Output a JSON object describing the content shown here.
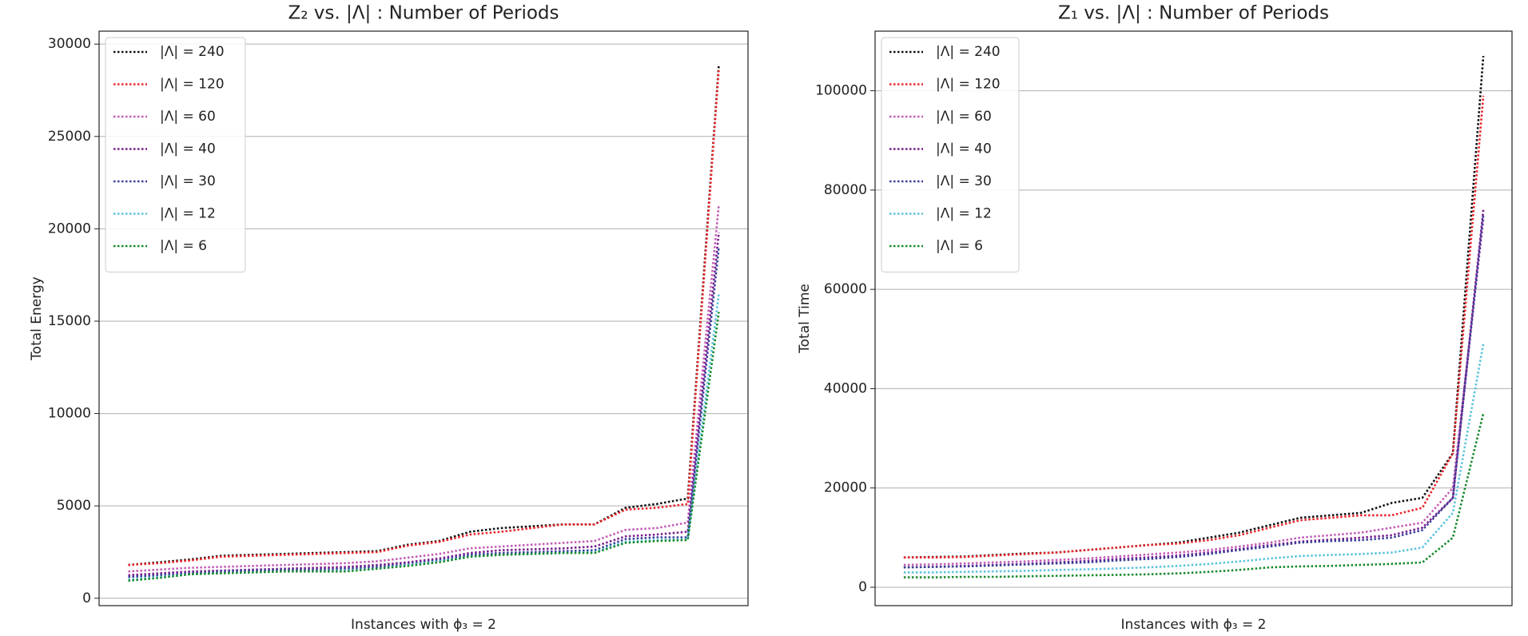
{
  "chart_data": [
    {
      "type": "line",
      "title": "Z₂ vs. |Λ| : Number of Periods",
      "xlabel": "Instances with ϕ₃ = 2",
      "ylabel": "Total Energy",
      "categories": [
        null,
        null,
        null,
        null,
        null,
        null,
        null,
        null,
        null,
        null,
        null,
        null,
        null,
        null,
        null,
        null,
        null,
        null,
        null,
        null
      ],
      "ylim": [
        -400,
        30700
      ],
      "yticks": [
        0,
        5000,
        10000,
        15000,
        20000,
        25000,
        30000
      ],
      "grid": true,
      "legend": "upper left",
      "series": [
        {
          "name": "|Λ| = 240",
          "color": "#111111",
          "values": [
            1800,
            1950,
            2100,
            2300,
            2350,
            2400,
            2450,
            2500,
            2550,
            2900,
            3100,
            3600,
            3800,
            3900,
            4000,
            4000,
            4900,
            5100,
            5400,
            28900
          ]
        },
        {
          "name": "|Λ| = 120",
          "color": "#e8262a",
          "values": [
            1800,
            1900,
            2050,
            2250,
            2300,
            2350,
            2400,
            2450,
            2500,
            2850,
            3050,
            3450,
            3600,
            3800,
            4000,
            4000,
            4800,
            4900,
            5100,
            28700
          ]
        },
        {
          "name": "|Λ| = 60",
          "color": "#c35cb6",
          "values": [
            1450,
            1550,
            1650,
            1700,
            1750,
            1800,
            1850,
            1900,
            2000,
            2200,
            2400,
            2700,
            2800,
            2900,
            3000,
            3100,
            3700,
            3800,
            4100,
            21300
          ]
        },
        {
          "name": "|Λ| = 40",
          "color": "#7a1f8e",
          "values": [
            1250,
            1350,
            1450,
            1500,
            1550,
            1600,
            1650,
            1700,
            1800,
            1950,
            2150,
            2450,
            2600,
            2650,
            2700,
            2800,
            3350,
            3450,
            3600,
            19800
          ]
        },
        {
          "name": "|Λ| = 30",
          "color": "#3a3f98",
          "values": [
            1150,
            1250,
            1350,
            1450,
            1500,
            1550,
            1550,
            1600,
            1700,
            1850,
            2050,
            2350,
            2450,
            2500,
            2550,
            2600,
            3200,
            3300,
            3300,
            19000
          ]
        },
        {
          "name": "|Λ| = 12",
          "color": "#5cc3df",
          "values": [
            1000,
            1150,
            1300,
            1350,
            1400,
            1450,
            1450,
            1500,
            1600,
            1800,
            2000,
            2250,
            2350,
            2400,
            2450,
            2500,
            3050,
            3150,
            3200,
            16500
          ]
        },
        {
          "name": "|Λ| = 6",
          "color": "#178a2c",
          "values": [
            950,
            1100,
            1300,
            1350,
            1400,
            1450,
            1450,
            1450,
            1600,
            1750,
            1950,
            2250,
            2350,
            2400,
            2450,
            2450,
            3000,
            3100,
            3150,
            15500
          ]
        }
      ]
    },
    {
      "type": "line",
      "title": "Z₁ vs. |Λ| : Number of Periods",
      "xlabel": "Instances with ϕ₃ = 2",
      "ylabel": "Total Time",
      "categories": [
        null,
        null,
        null,
        null,
        null,
        null,
        null,
        null,
        null,
        null,
        null,
        null,
        null,
        null,
        null,
        null,
        null,
        null,
        null,
        null
      ],
      "ylim": [
        -3700,
        112000
      ],
      "yticks": [
        0,
        20000,
        40000,
        60000,
        80000,
        100000
      ],
      "grid": true,
      "legend": "upper left",
      "series": [
        {
          "name": "|Λ| = 240",
          "color": "#111111",
          "values": [
            6000,
            6100,
            6200,
            6500,
            6800,
            7000,
            7500,
            8000,
            8500,
            9000,
            10000,
            11000,
            12500,
            14000,
            14500,
            15000,
            17000,
            18000,
            27000,
            107000
          ]
        },
        {
          "name": "|Λ| = 120",
          "color": "#e8262a",
          "values": [
            6000,
            6000,
            6100,
            6400,
            6700,
            7000,
            7500,
            8000,
            8500,
            8800,
            9500,
            10500,
            12000,
            13500,
            14000,
            14500,
            14500,
            16000,
            27000,
            99000
          ]
        },
        {
          "name": "|Λ| = 60",
          "color": "#c35cb6",
          "values": [
            4500,
            4600,
            4800,
            5000,
            5200,
            5500,
            5800,
            6200,
            6600,
            7000,
            7500,
            8200,
            9000,
            10000,
            10500,
            11000,
            12000,
            13000,
            20000,
            74000
          ]
        },
        {
          "name": "|Λ| = 40",
          "color": "#7a1f8e",
          "values": [
            4000,
            4100,
            4300,
            4500,
            4700,
            5000,
            5300,
            5700,
            6000,
            6400,
            7000,
            7700,
            8500,
            9200,
            9600,
            10000,
            10500,
            12000,
            18000,
            76000
          ]
        },
        {
          "name": "|Λ| = 30",
          "color": "#3a3f98",
          "values": [
            4000,
            4100,
            4200,
            4400,
            4600,
            4800,
            5000,
            5400,
            5700,
            6100,
            6700,
            7500,
            8200,
            9000,
            9300,
            9500,
            10000,
            11500,
            18000,
            75000
          ]
        },
        {
          "name": "|Λ| = 12",
          "color": "#5cc3df",
          "values": [
            3000,
            3000,
            3100,
            3200,
            3300,
            3500,
            3600,
            3800,
            4000,
            4300,
            4700,
            5200,
            5800,
            6300,
            6500,
            6700,
            7000,
            8000,
            15000,
            49000
          ]
        },
        {
          "name": "|Λ| = 6",
          "color": "#178a2c",
          "values": [
            2000,
            2000,
            2100,
            2100,
            2200,
            2300,
            2400,
            2500,
            2600,
            2800,
            3100,
            3500,
            4000,
            4200,
            4300,
            4500,
            4700,
            5000,
            10000,
            35000
          ]
        }
      ]
    }
  ]
}
